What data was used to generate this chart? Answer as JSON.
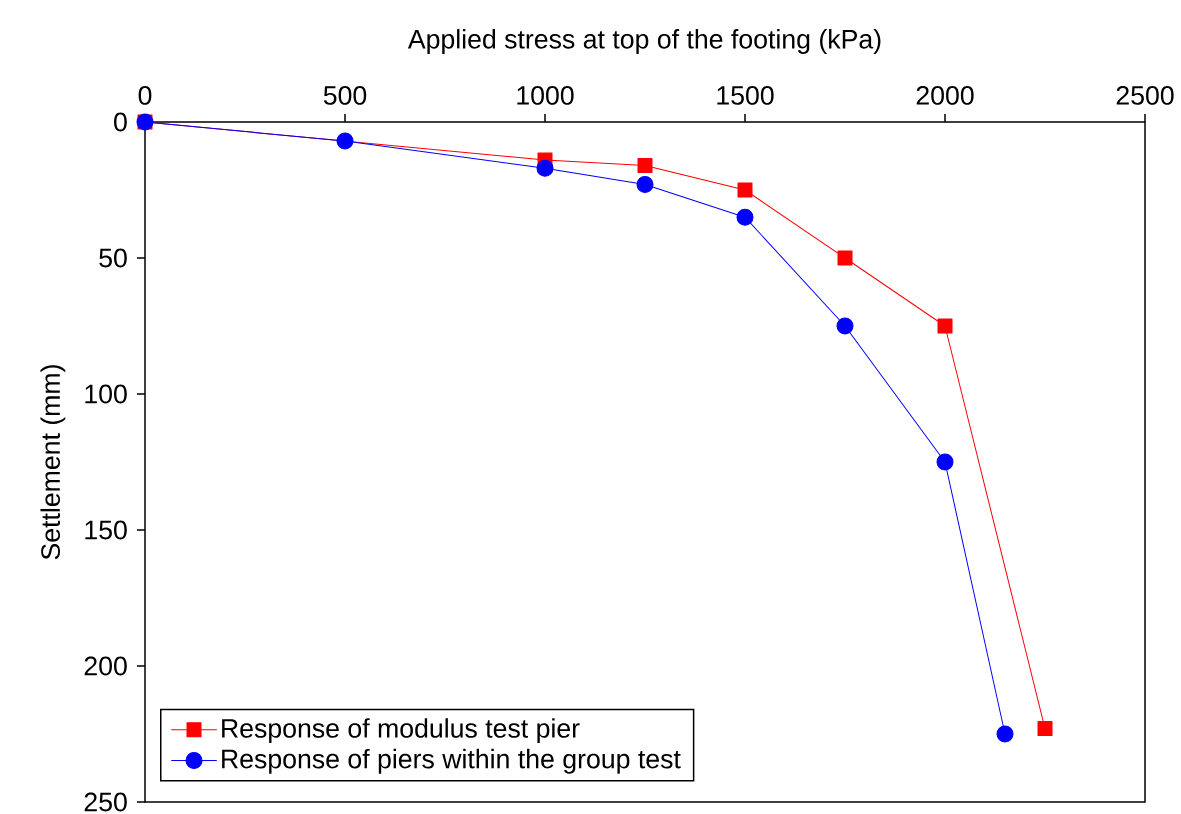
{
  "chart_data": {
    "type": "line",
    "xlabel": "Applied stress at top of the footing (kPa)",
    "ylabel": "Settlement (mm)",
    "xlim": [
      0,
      2500
    ],
    "xticks": [
      0,
      500,
      1000,
      1500,
      2000,
      2500
    ],
    "ylim": [
      250,
      0
    ],
    "yticks": [
      0,
      50,
      100,
      150,
      200,
      250
    ],
    "grid": false,
    "legend": "bottom left",
    "series": [
      {
        "name": "Response of modulus test pier",
        "color": "#ff0000",
        "marker": "square",
        "x": [
          0,
          500,
          1000,
          1250,
          1500,
          1750,
          2000,
          2250
        ],
        "values": [
          0,
          null,
          14,
          16,
          25,
          50,
          75,
          223
        ]
      },
      {
        "name": "Response of piers within the group test",
        "color": "#0000ff",
        "marker": "circle",
        "x": [
          0,
          500,
          1000,
          1250,
          1500,
          1750,
          2000,
          2150
        ],
        "values": [
          0,
          7,
          17,
          23,
          35,
          75,
          125,
          225
        ]
      }
    ]
  }
}
